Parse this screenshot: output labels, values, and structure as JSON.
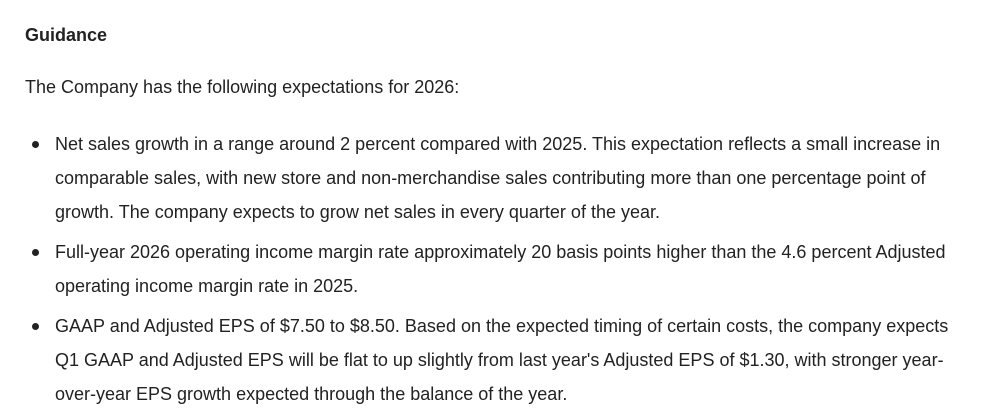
{
  "guidance": {
    "heading": "Guidance",
    "intro": "The Company has the following expectations for 2026:",
    "bullets": [
      {
        "text": "Net sales growth in a range around 2 percent compared with 2025. This expectation reflects a small increase in comparable sales, with new store and non-merchandise sales contributing more than one percentage point of growth. The company expects to grow net sales in every quarter of the year."
      },
      {
        "text": "Full-year 2026 operating income margin rate approximately 20 basis points higher than the 4.6 percent Adjusted operating income margin rate in 2025."
      },
      {
        "text": "GAAP and Adjusted EPS of $7.50 to $8.50. Based on the expected timing of certain costs, the company expects Q1 GAAP and Adjusted EPS will be flat to up slightly from last year's Adjusted EPS of $1.30, with stronger year-over-year EPS growth expected through the balance of the year."
      }
    ]
  }
}
